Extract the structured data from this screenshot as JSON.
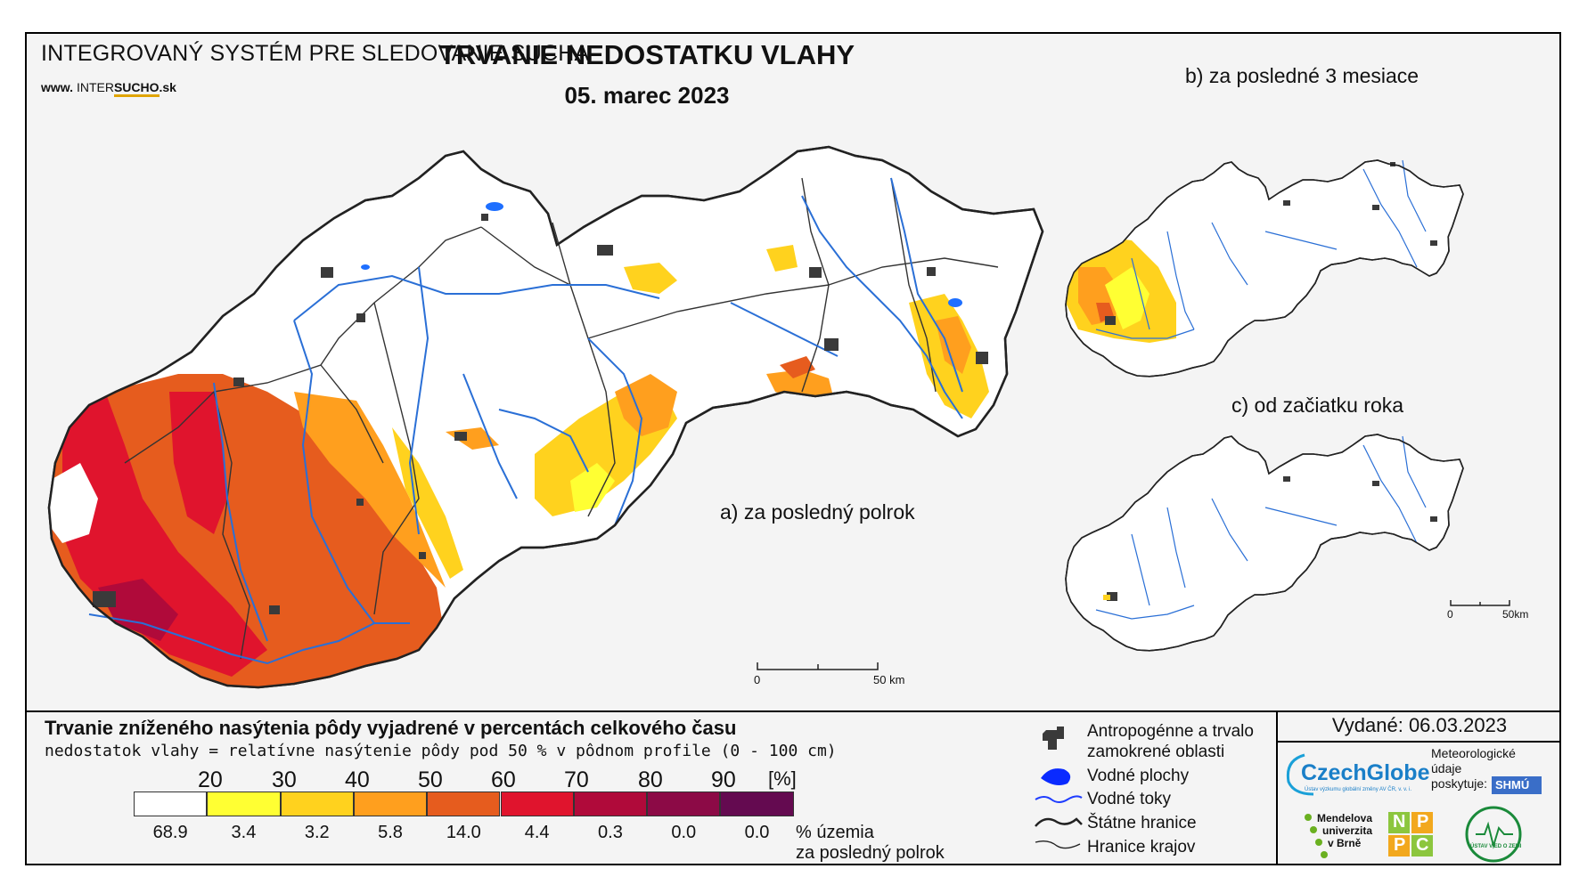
{
  "header": {
    "system_title": "INTEGROVANÝ SYSTÉM PRE SLEDOVANIE SUCHA",
    "www_prefix": "www.",
    "www_inter": "INTER",
    "www_sucho": "SUCHO",
    "www_suffix": ".sk",
    "map_title": "TRVANIE NEDOSTATKU VLAHY",
    "map_date": "05. marec 2023"
  },
  "panels": {
    "a_label": "a) za posledný polrok",
    "b_label": "b) za posledné 3 mesiace",
    "c_label": "c) od začiatku roka"
  },
  "scalebars": {
    "main_start": "0",
    "main_end": "50 km",
    "small_start": "0",
    "small_end": "50km"
  },
  "legend": {
    "title": "Trvanie zníženého nasýtenia pôdy vyjadrené v percentách celkového času",
    "subtitle": "nedostatok vlahy = relatívne nasýtenie pôdy pod 50 % v pôdnom profile (0 - 100 cm)",
    "unit": "[%]",
    "thresholds": [
      "20",
      "30",
      "40",
      "50",
      "60",
      "70",
      "80",
      "90"
    ],
    "classes": [
      {
        "color": "#ffffff",
        "value": "68.9"
      },
      {
        "color": "#ffff33",
        "value": "3.4"
      },
      {
        "color": "#ffd21e",
        "value": "3.2"
      },
      {
        "color": "#ff9f1e",
        "value": "5.8"
      },
      {
        "color": "#e65c1e",
        "value": "14.0"
      },
      {
        "color": "#e0142d",
        "value": "4.4"
      },
      {
        "color": "#b00a3a",
        "value": "0.3"
      },
      {
        "color": "#8c0a46",
        "value": "0.0"
      },
      {
        "color": "#640a50",
        "value": "0.0"
      }
    ],
    "pct_label_1": "% územia",
    "pct_label_2": "za posledný polrok"
  },
  "symbols": {
    "urban_1": "Antropogénne a trvalo",
    "urban_2": "zamokrené oblasti",
    "water_bodies": "Vodné plochy",
    "rivers": "Vodné toky",
    "state_border": "Štátne hranice",
    "region_border": "Hranice krajov"
  },
  "issued": "Vydané: 06.03.2023",
  "logos": {
    "czechglobe": "CzechGlobe",
    "czechglobe_sub": "Ústav výzkumu globální změny AV ČR, v. v. i.",
    "meteo_1": "Meteorologické",
    "meteo_2": "údaje",
    "meteo_3": "poskytuje:",
    "shmu": "SHMÚ",
    "mendel_1": "Mendelova",
    "mendel_2": "univerzita",
    "mendel_3": "v Brně",
    "nppc_n": "N",
    "nppc_p1": "P",
    "nppc_p2": "P",
    "nppc_c": "C",
    "uvz": "ÚSTAV VIED O ZEMI"
  },
  "colors": {
    "river": "#2a6fd6",
    "urban": "#3a3a3a",
    "border": "#222222"
  }
}
